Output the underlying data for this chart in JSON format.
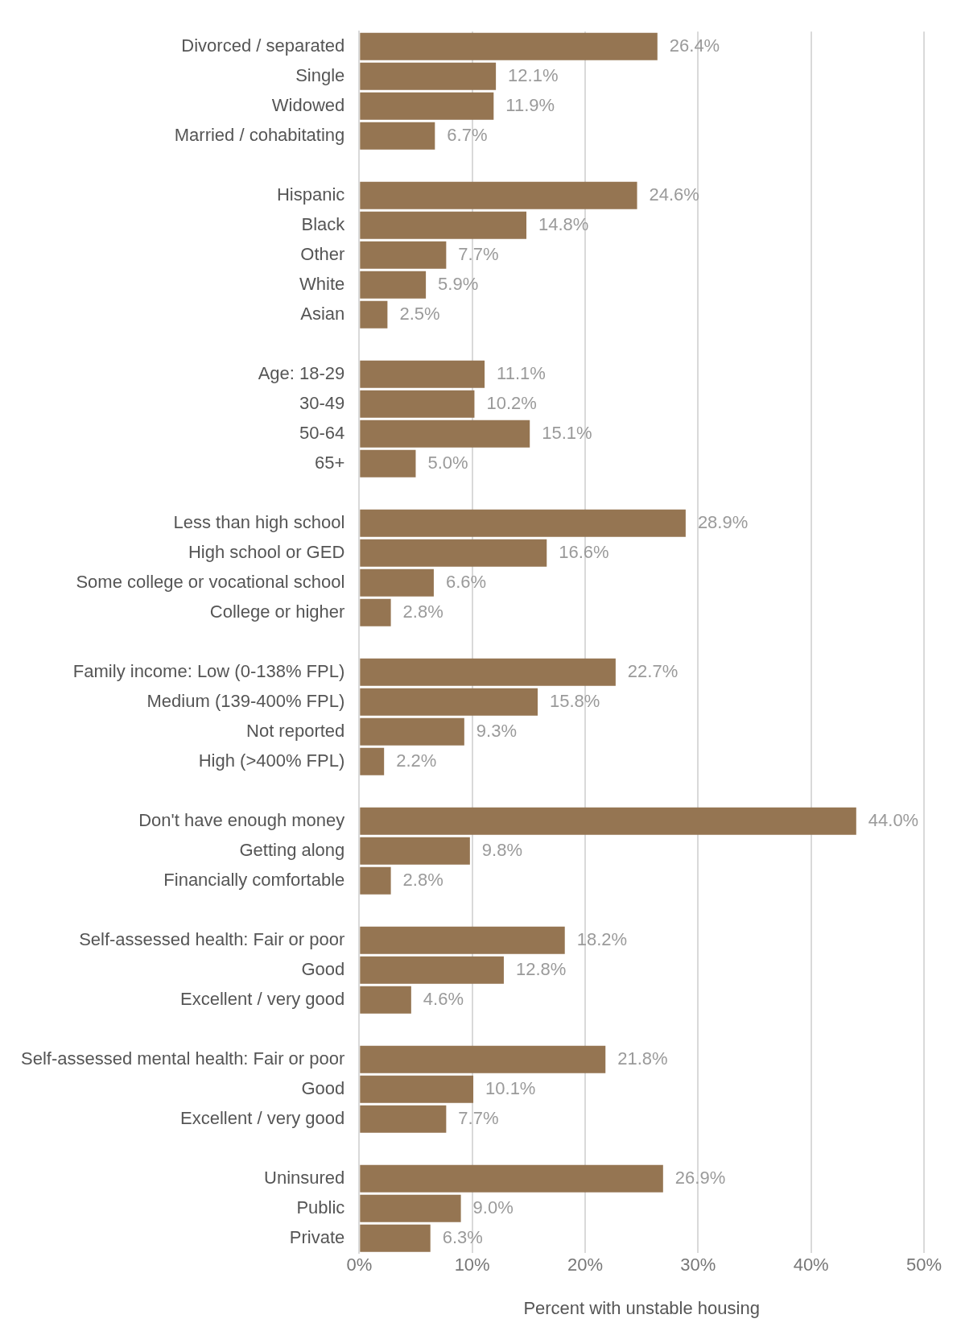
{
  "chart_data": {
    "type": "bar",
    "orientation": "horizontal",
    "xlabel": "Percent with unstable housing",
    "categories": [
      "Divorced / separated",
      "Single",
      "Widowed",
      "Married / cohabitating",
      null,
      "Hispanic",
      "Black",
      "Other",
      "White",
      "Asian",
      null,
      "Age: 18-29",
      "30-49",
      "50-64",
      "65+",
      null,
      "Less than high school",
      "High school or GED",
      "Some college or vocational school",
      "College or higher",
      null,
      "Family income: Low (0-138% FPL)",
      "Medium (139-400% FPL)",
      "Not reported",
      "High (>400% FPL)",
      null,
      "Don't have enough money",
      "Getting along",
      "Financially comfortable",
      null,
      "Self-assessed health: Fair or poor",
      "Good",
      "Excellent / very good",
      null,
      "Self-assessed mental health: Fair or poor",
      "Good",
      "Excellent / very good",
      null,
      "Uninsured",
      "Public",
      "Private"
    ],
    "values": [
      26.4,
      12.1,
      11.9,
      6.7,
      null,
      24.6,
      14.8,
      7.7,
      5.9,
      2.5,
      null,
      11.1,
      10.2,
      15.1,
      5.0,
      null,
      28.9,
      16.6,
      6.6,
      2.8,
      null,
      22.7,
      15.8,
      9.3,
      2.2,
      null,
      44.0,
      9.8,
      2.8,
      null,
      18.2,
      12.8,
      4.6,
      null,
      21.8,
      10.1,
      7.7,
      null,
      26.9,
      9.0,
      6.3
    ],
    "value_labels": [
      "26.4%",
      "12.1%",
      "11.9%",
      "6.7%",
      null,
      "24.6%",
      "14.8%",
      "7.7%",
      "5.9%",
      "2.5%",
      null,
      "11.1%",
      "10.2%",
      "15.1%",
      "5.0%",
      null,
      "28.9%",
      "16.6%",
      "6.6%",
      "2.8%",
      null,
      "22.7%",
      "15.8%",
      "9.3%",
      "2.2%",
      null,
      "44.0%",
      "9.8%",
      "2.8%",
      null,
      "18.2%",
      "12.8%",
      "4.6%",
      null,
      "21.8%",
      "10.1%",
      "7.7%",
      null,
      "26.9%",
      "9.0%",
      "6.3%"
    ],
    "color": "#957552",
    "xlim": [
      0,
      50
    ],
    "xticks": [
      {
        "value": 0,
        "label": "0%"
      },
      {
        "value": 10,
        "label": "10%"
      },
      {
        "value": 20,
        "label": "20%"
      },
      {
        "value": 30,
        "label": "30%"
      },
      {
        "value": 40,
        "label": "40%"
      },
      {
        "value": 50,
        "label": "50%"
      }
    ],
    "grid": "x",
    "legend": false
  }
}
